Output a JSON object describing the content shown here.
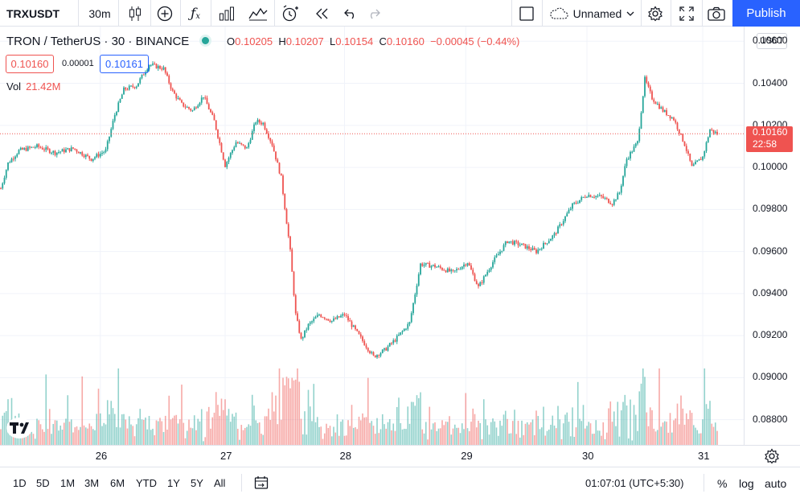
{
  "toolbar": {
    "symbol": "TRXUSDT",
    "interval": "30m",
    "layout_name": "Unnamed",
    "publish_label": "Publish",
    "icons": [
      "candles-icon",
      "add-compare-icon",
      "indicators-fx-icon",
      "bar-chart-icon",
      "templates-icon",
      "alert-icon",
      "replay-icon",
      "undo-icon",
      "redo-icon",
      "layout-square-icon",
      "cloud-icon",
      "settings-icon",
      "fullscreen-icon",
      "camera-icon"
    ]
  },
  "legend": {
    "title": "TRON / TetherUS · 30 · BINANCE",
    "o_label": "O",
    "o": "0.10205",
    "h_label": "H",
    "h": "0.10207",
    "l_label": "L",
    "l": "0.10154",
    "c_label": "C",
    "c": "0.10160",
    "change": "−0.00045 (−0.44%)",
    "bid": "0.10160",
    "spread": "0.00001",
    "ask": "0.10161",
    "vol_label": "Vol",
    "vol_value": "21.42M"
  },
  "price_axis": {
    "currency": "USDT",
    "last_price": "0.10160",
    "countdown": "22:58"
  },
  "time_axis_labels": [
    "26",
    "27",
    "28",
    "29",
    "30",
    "31"
  ],
  "bottom_bar": {
    "ranges": [
      "1D",
      "5D",
      "1M",
      "3M",
      "6M",
      "YTD",
      "1Y",
      "5Y",
      "All"
    ],
    "clock": "01:07:01 (UTC+5:30)",
    "percent": "%",
    "log": "log",
    "auto": "auto"
  },
  "colors": {
    "up": "#26a69a",
    "down": "#ef5350",
    "accent": "#2962ff"
  },
  "chart_data": {
    "type": "candlestick",
    "symbol": "TRXUSDT",
    "interval": "30m",
    "y_tick_labels": [
      "0.10600",
      "0.10400",
      "0.10200",
      "0.10000",
      "0.09800",
      "0.09600",
      "0.09400",
      "0.09200",
      "0.09000",
      "0.08800"
    ],
    "x_tick_labels": [
      "26",
      "27",
      "28",
      "29",
      "30",
      "31"
    ],
    "ylim": [
      0.0868,
      0.1067
    ],
    "last": 0.1016,
    "trend_points": [
      {
        "x": 0,
        "y": 0.099
      },
      {
        "x": 4,
        "y": 0.1002
      },
      {
        "x": 10,
        "y": 0.1008
      },
      {
        "x": 20,
        "y": 0.101
      },
      {
        "x": 30,
        "y": 0.1007
      },
      {
        "x": 40,
        "y": 0.1009
      },
      {
        "x": 50,
        "y": 0.1004
      },
      {
        "x": 58,
        "y": 0.1008
      },
      {
        "x": 63,
        "y": 0.1025
      },
      {
        "x": 68,
        "y": 0.1037
      },
      {
        "x": 75,
        "y": 0.1039
      },
      {
        "x": 82,
        "y": 0.1049
      },
      {
        "x": 90,
        "y": 0.1047
      },
      {
        "x": 95,
        "y": 0.1036
      },
      {
        "x": 100,
        "y": 0.103
      },
      {
        "x": 106,
        "y": 0.1027
      },
      {
        "x": 112,
        "y": 0.1034
      },
      {
        "x": 118,
        "y": 0.1022
      },
      {
        "x": 124,
        "y": 0.1001
      },
      {
        "x": 130,
        "y": 0.1012
      },
      {
        "x": 136,
        "y": 0.1009
      },
      {
        "x": 141,
        "y": 0.1022
      },
      {
        "x": 145,
        "y": 0.1021
      },
      {
        "x": 150,
        "y": 0.1011
      },
      {
        "x": 155,
        "y": 0.0995
      },
      {
        "x": 160,
        "y": 0.096
      },
      {
        "x": 163,
        "y": 0.093
      },
      {
        "x": 166,
        "y": 0.0918
      },
      {
        "x": 170,
        "y": 0.0925
      },
      {
        "x": 176,
        "y": 0.093
      },
      {
        "x": 183,
        "y": 0.0927
      },
      {
        "x": 190,
        "y": 0.093
      },
      {
        "x": 198,
        "y": 0.092
      },
      {
        "x": 206,
        "y": 0.091
      },
      {
        "x": 212,
        "y": 0.0913
      },
      {
        "x": 218,
        "y": 0.0918
      },
      {
        "x": 226,
        "y": 0.0926
      },
      {
        "x": 232,
        "y": 0.0954
      },
      {
        "x": 240,
        "y": 0.0953
      },
      {
        "x": 250,
        "y": 0.095
      },
      {
        "x": 258,
        "y": 0.0955
      },
      {
        "x": 264,
        "y": 0.0943
      },
      {
        "x": 272,
        "y": 0.0955
      },
      {
        "x": 280,
        "y": 0.0965
      },
      {
        "x": 288,
        "y": 0.0963
      },
      {
        "x": 296,
        "y": 0.096
      },
      {
        "x": 306,
        "y": 0.0968
      },
      {
        "x": 316,
        "y": 0.0982
      },
      {
        "x": 324,
        "y": 0.0987
      },
      {
        "x": 332,
        "y": 0.0986
      },
      {
        "x": 338,
        "y": 0.0983
      },
      {
        "x": 342,
        "y": 0.0988
      },
      {
        "x": 346,
        "y": 0.1004
      },
      {
        "x": 352,
        "y": 0.1012
      },
      {
        "x": 356,
        "y": 0.1042
      },
      {
        "x": 360,
        "y": 0.1033
      },
      {
        "x": 366,
        "y": 0.1027
      },
      {
        "x": 372,
        "y": 0.1023
      },
      {
        "x": 378,
        "y": 0.1011
      },
      {
        "x": 382,
        "y": 0.1
      },
      {
        "x": 388,
        "y": 0.1005
      },
      {
        "x": 392,
        "y": 0.1018
      },
      {
        "x": 396,
        "y": 0.1016
      }
    ],
    "volume_max_label": "21.42M"
  }
}
